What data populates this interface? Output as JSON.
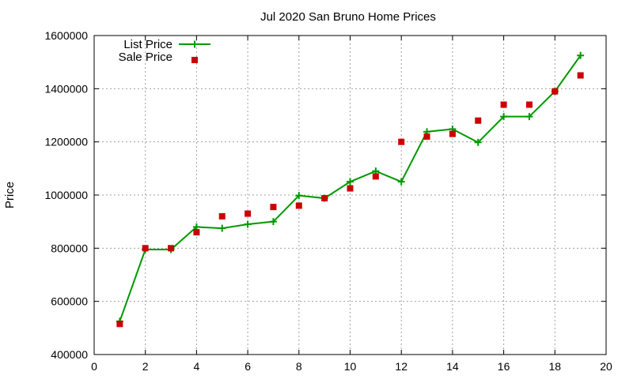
{
  "chart_data": {
    "type": "line",
    "title": "Jul 2020 San Bruno Home Prices",
    "xlabel": "",
    "ylabel": "Price",
    "xlim": [
      0,
      20
    ],
    "ylim": [
      400000,
      1600000
    ],
    "xticks": [
      0,
      2,
      4,
      6,
      8,
      10,
      12,
      14,
      16,
      18,
      20
    ],
    "yticks": [
      400000,
      600000,
      800000,
      1000000,
      1200000,
      1400000,
      1600000
    ],
    "grid": true,
    "legend_position": "top-left",
    "series": [
      {
        "name": "List Price",
        "style": "line+points",
        "marker": "plus",
        "color": "#009900",
        "x": [
          1,
          2,
          3,
          4,
          5,
          6,
          7,
          8,
          9,
          10,
          11,
          12,
          13,
          14,
          15,
          16,
          17,
          18,
          19
        ],
        "y": [
          525000,
          795000,
          795000,
          880000,
          875000,
          890000,
          900000,
          998000,
          988000,
          1050000,
          1090000,
          1050000,
          1238000,
          1248000,
          1198000,
          1295000,
          1295000,
          1390000,
          1525000
        ]
      },
      {
        "name": "Sale Price",
        "style": "points",
        "marker": "square",
        "color": "#cc0000",
        "x": [
          1,
          2,
          3,
          4,
          5,
          6,
          7,
          8,
          9,
          10,
          11,
          12,
          13,
          14,
          15,
          16,
          17,
          18,
          19
        ],
        "y": [
          515000,
          800000,
          800000,
          860000,
          920000,
          930000,
          955000,
          960000,
          988000,
          1025000,
          1070000,
          1200000,
          1220000,
          1230000,
          1280000,
          1340000,
          1340000,
          1390000,
          1450000
        ]
      }
    ]
  }
}
